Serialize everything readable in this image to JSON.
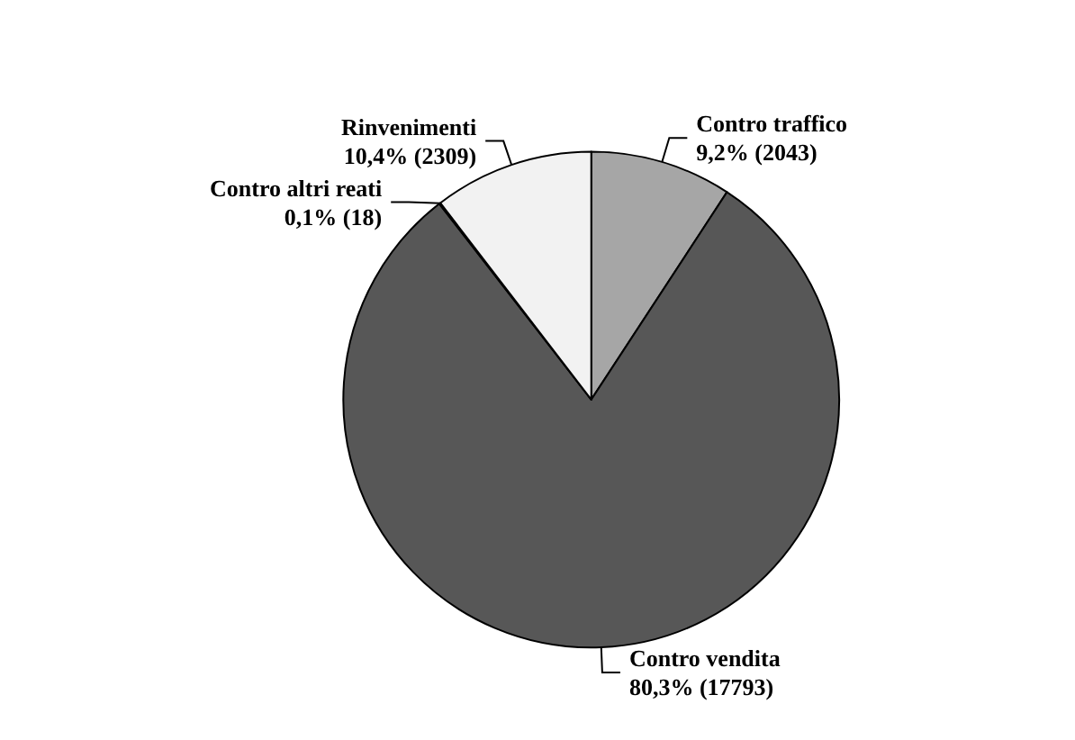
{
  "chart_data": {
    "type": "pie",
    "categories": [
      "Contro traffico",
      "Contro vendita",
      "Contro altri reati",
      "Rinvenimenti"
    ],
    "values": [
      2043,
      17793,
      18,
      2309
    ],
    "value_labels": [
      "9,2% (2043)",
      "80,3% (17793)",
      "0,1% (18)",
      "10,4% (2309)"
    ],
    "colors": [
      "#a6a6a6",
      "#575757",
      "#ffffff",
      "#f2f2f2"
    ],
    "legend": false
  }
}
